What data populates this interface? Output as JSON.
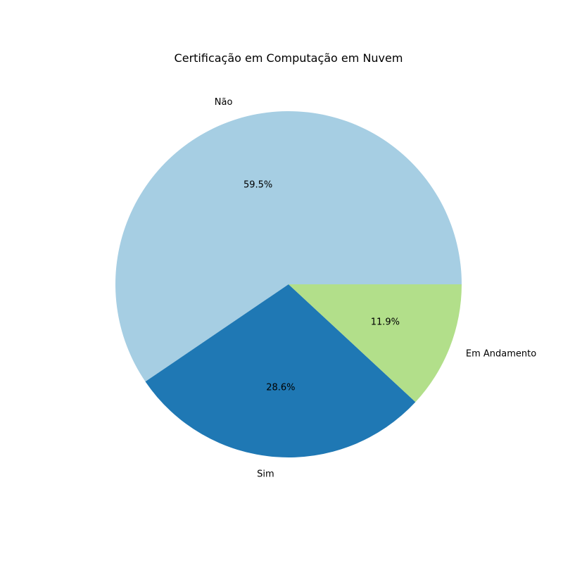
{
  "chart_data": {
    "type": "pie",
    "title": "Certificação em Computação em Nuvem",
    "slices": [
      {
        "label": "Não",
        "value": 59.5,
        "pct_label": "59.5%",
        "color": "#a6cee3"
      },
      {
        "label": "Sim",
        "value": 28.6,
        "pct_label": "28.6%",
        "color": "#1f78b4"
      },
      {
        "label": "Em Andamento",
        "value": 11.9,
        "pct_label": "11.9%",
        "color": "#b2df8a"
      }
    ],
    "start_angle_deg": 0,
    "direction": "counterclockwise",
    "legend": "none"
  }
}
